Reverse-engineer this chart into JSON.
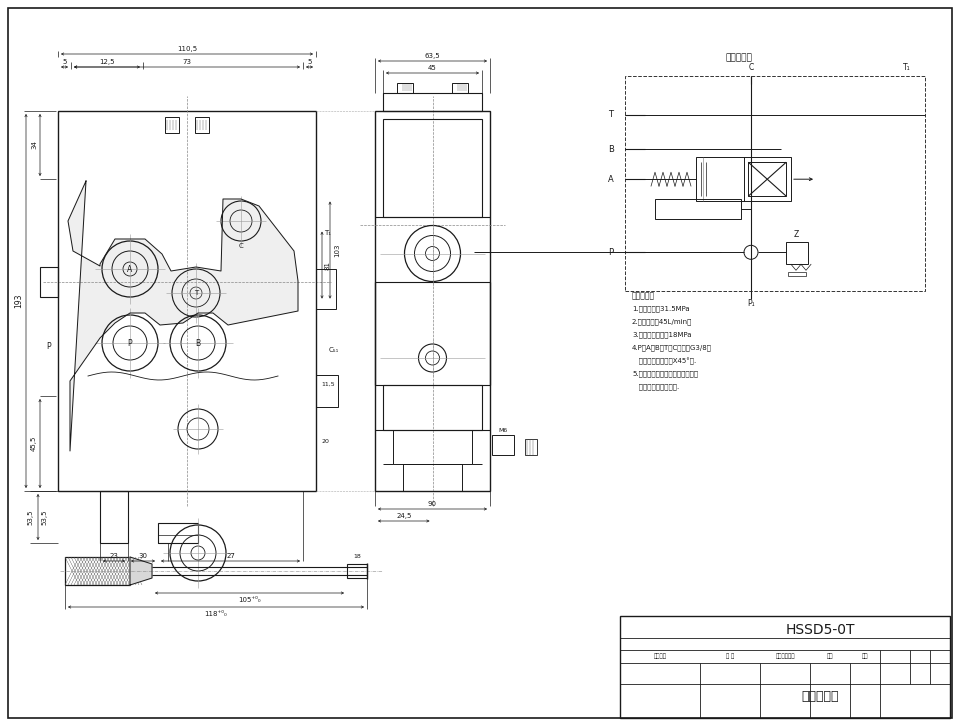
{
  "bg_color": "#ffffff",
  "line_color": "#1a1a1a",
  "title": "HSSD5-0T",
  "subtitle": "一进多路阀",
  "tech_title": "技术参数：",
  "tech_params": [
    "1.额定压力：31.5MPa",
    "2.额定流量：45L/min。",
    "3.内泄内泄压力：18MPa",
    "4.P、A、B、T、C口径为G3/8，",
    "   其中内箧流口口径X45°倒.",
    "5.未标注公差处理，公差标注外，",
    "   文字高度为标准字体."
  ],
  "hydraulic_title": "液压原理图"
}
